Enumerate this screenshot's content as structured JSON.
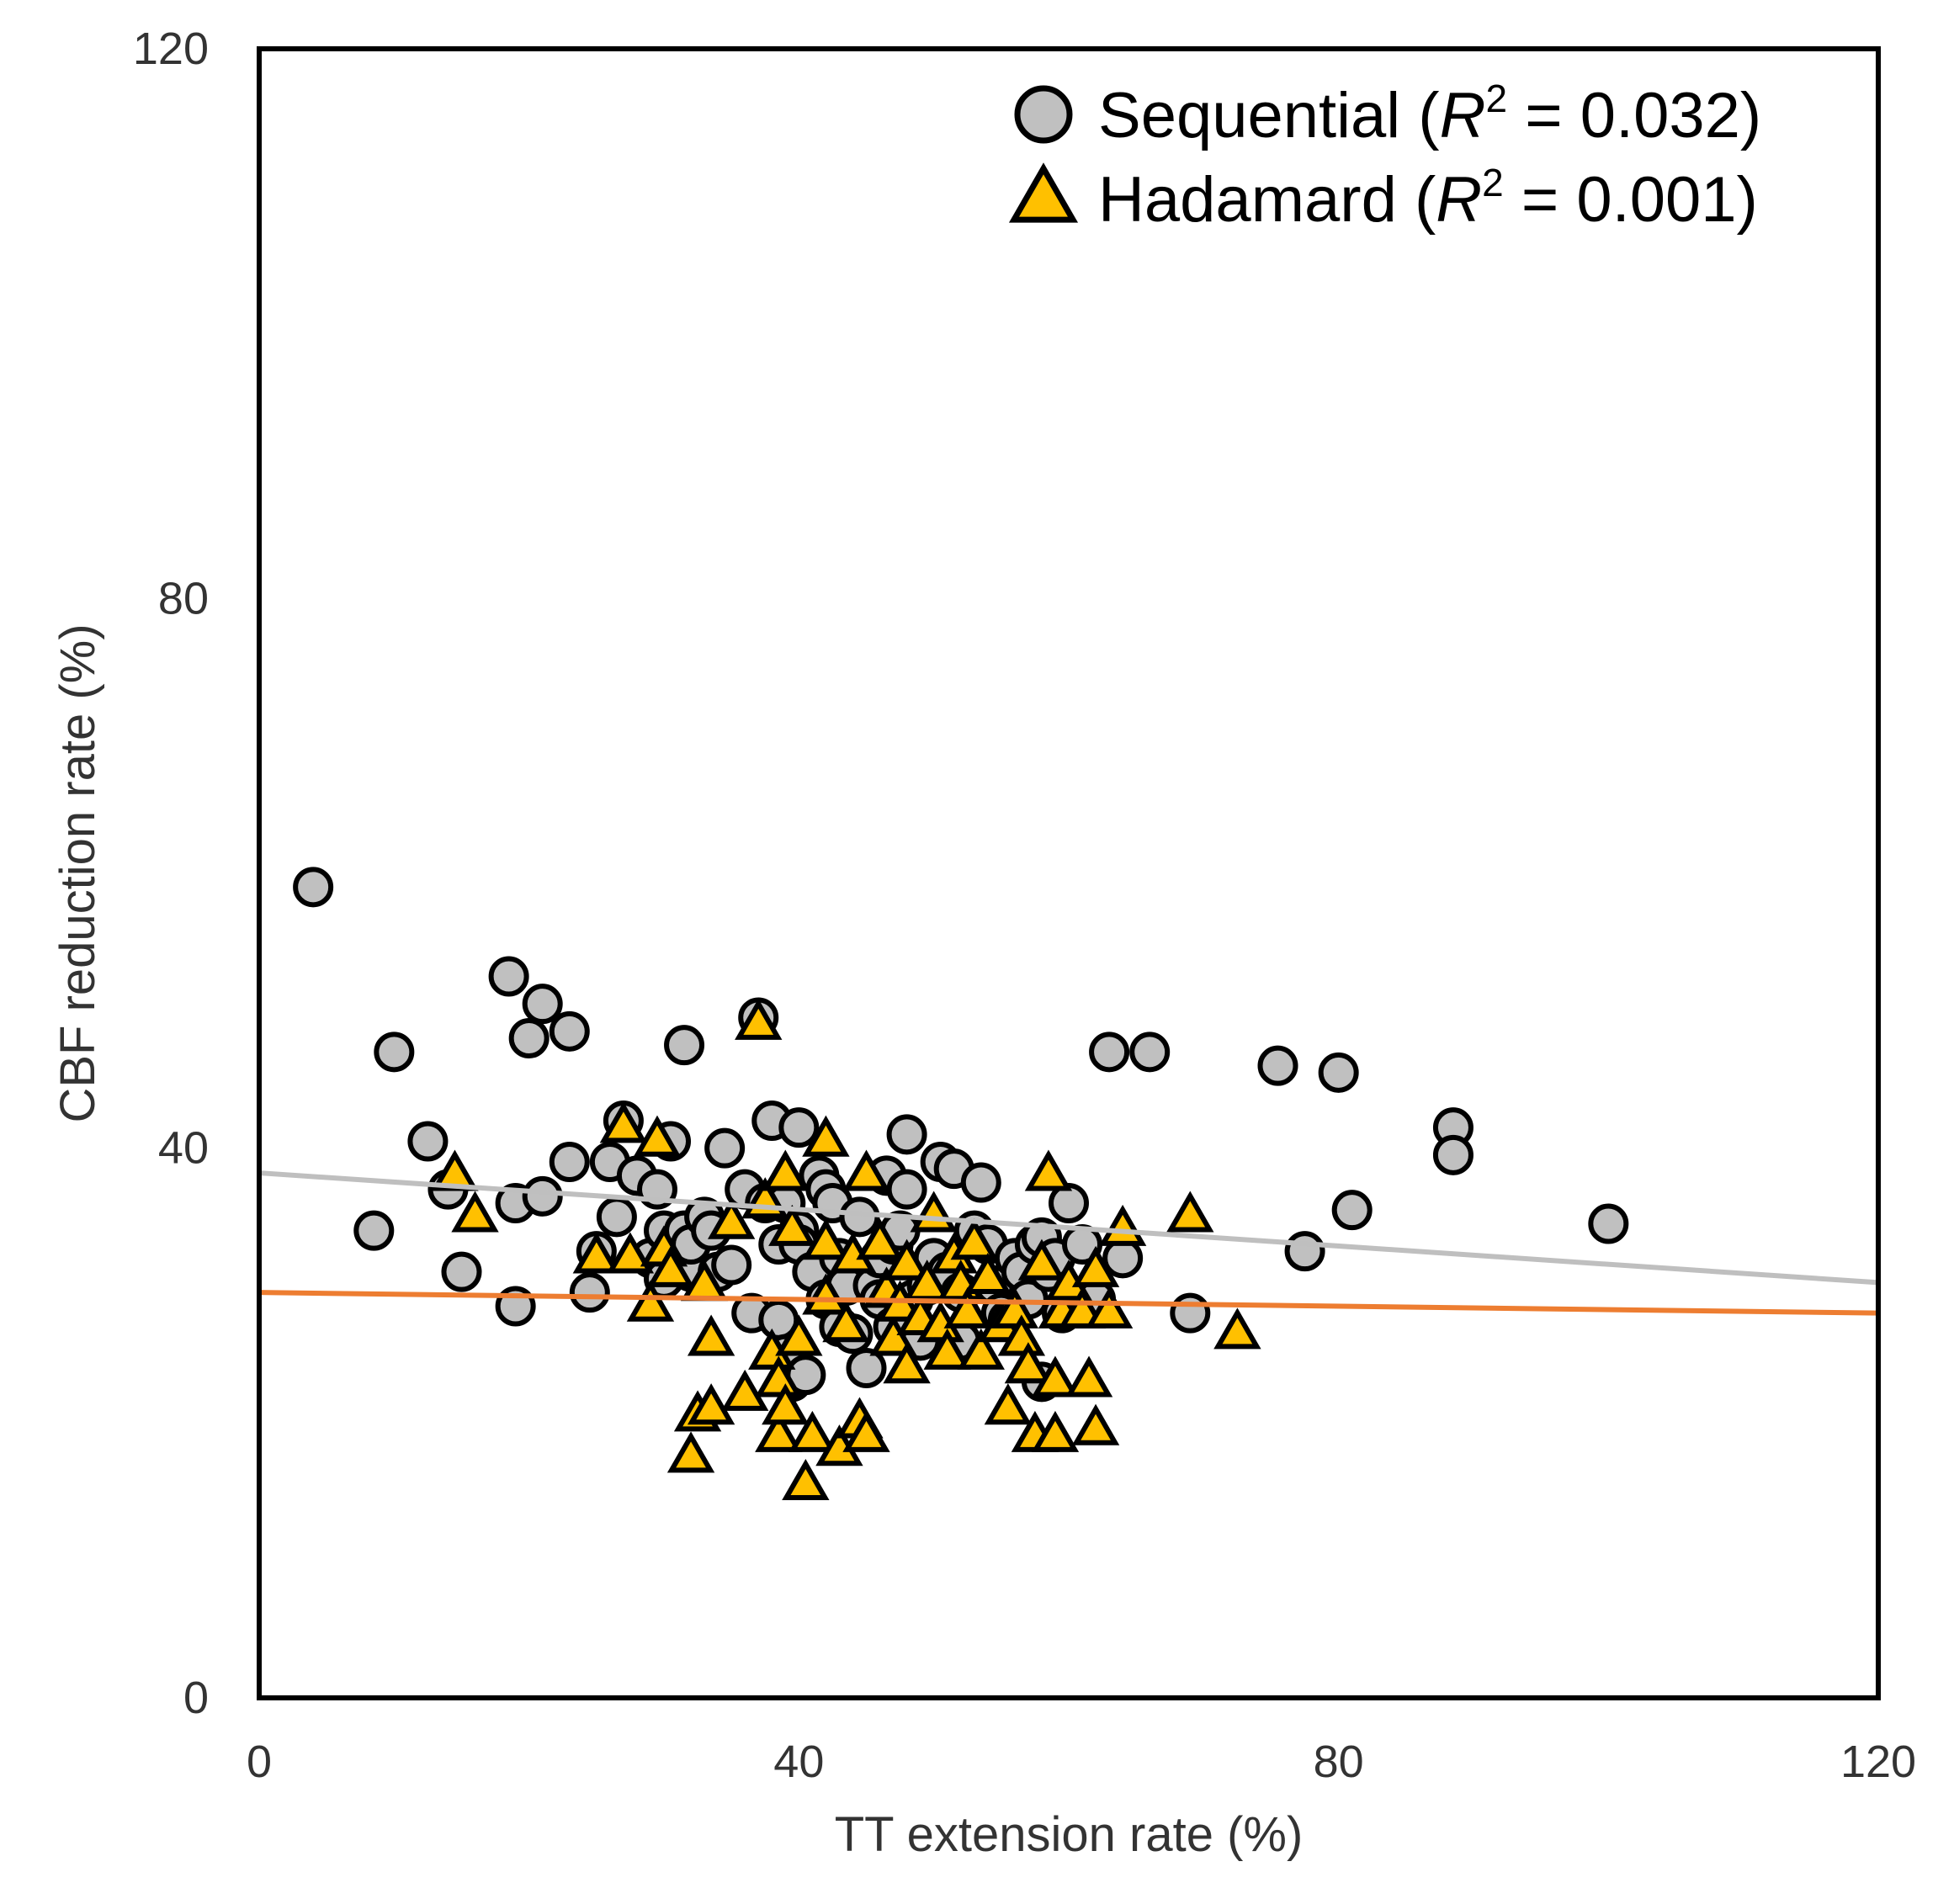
{
  "chart_data": {
    "type": "scatter",
    "title": "",
    "xlabel": "TT extension rate (%)",
    "ylabel": "CBF reduction rate (%)",
    "xlim": [
      0,
      120
    ],
    "ylim": [
      0,
      120
    ],
    "xticks": [
      0,
      40,
      80,
      120
    ],
    "yticks": [
      0,
      40,
      80,
      120
    ],
    "grid": false,
    "legend_position": "top-right",
    "colors": {
      "sequential_fill": "#c0c0c0",
      "hadamard_fill": "#ffc000",
      "marker_stroke": "#000000",
      "sequential_trend": "#bfbfbf",
      "hadamard_trend": "#ed7d31",
      "frame": "#000000"
    },
    "series": [
      {
        "name": "Sequential",
        "r2_label": "0.032",
        "marker": "circle",
        "trend": {
          "intercept": 38.2,
          "slope": -0.0665
        },
        "points": [
          [
            4,
            59
          ],
          [
            8.5,
            34
          ],
          [
            10,
            47
          ],
          [
            12.5,
            40.5
          ],
          [
            14,
            37
          ],
          [
            15,
            31
          ],
          [
            18.5,
            52.5
          ],
          [
            19,
            36
          ],
          [
            19,
            28.5
          ],
          [
            20,
            48
          ],
          [
            21,
            50.5
          ],
          [
            21,
            36.5
          ],
          [
            23,
            48.5
          ],
          [
            23,
            39
          ],
          [
            24.5,
            29.5
          ],
          [
            25,
            32.5
          ],
          [
            26,
            39
          ],
          [
            26.5,
            35
          ],
          [
            27,
            42
          ],
          [
            28,
            38
          ],
          [
            29,
            32
          ],
          [
            29.5,
            37
          ],
          [
            30,
            34
          ],
          [
            30,
            30.5
          ],
          [
            30.5,
            40.5
          ],
          [
            31,
            32
          ],
          [
            31.5,
            34
          ],
          [
            31.5,
            47.5
          ],
          [
            32,
            31
          ],
          [
            32,
            33
          ],
          [
            33,
            35
          ],
          [
            33.5,
            34
          ],
          [
            34,
            31
          ],
          [
            34.5,
            40
          ],
          [
            35,
            31.5
          ],
          [
            36,
            37
          ],
          [
            36.5,
            28
          ],
          [
            37,
            49.5
          ],
          [
            37.5,
            36
          ],
          [
            38,
            42
          ],
          [
            38.5,
            33
          ],
          [
            38.5,
            27.5
          ],
          [
            39,
            36
          ],
          [
            39,
            25
          ],
          [
            39.5,
            23
          ],
          [
            40,
            41.5
          ],
          [
            40,
            34
          ],
          [
            40,
            33
          ],
          [
            40.5,
            23.5
          ],
          [
            41,
            31
          ],
          [
            41.5,
            38
          ],
          [
            42,
            37
          ],
          [
            42,
            29
          ],
          [
            42.5,
            36
          ],
          [
            43,
            27
          ],
          [
            43,
            32
          ],
          [
            43.5,
            30
          ],
          [
            44,
            26.5
          ],
          [
            44.5,
            35
          ],
          [
            45,
            24
          ],
          [
            45.5,
            30
          ],
          [
            46,
            32
          ],
          [
            46,
            29
          ],
          [
            46.5,
            38
          ],
          [
            47,
            27
          ],
          [
            47,
            33
          ],
          [
            47.5,
            34
          ],
          [
            48,
            41
          ],
          [
            48,
            37
          ],
          [
            48.5,
            29
          ],
          [
            49,
            26
          ],
          [
            49.5,
            30
          ],
          [
            50,
            32
          ],
          [
            50.5,
            39
          ],
          [
            51,
            31
          ],
          [
            51.5,
            38.5
          ],
          [
            52,
            29.5
          ],
          [
            52,
            26
          ],
          [
            53,
            34
          ],
          [
            53.5,
            37.5
          ],
          [
            54,
            33
          ],
          [
            54.5,
            30
          ],
          [
            55,
            28
          ],
          [
            55.5,
            27.5
          ],
          [
            56,
            32
          ],
          [
            56.5,
            31
          ],
          [
            57,
            29
          ],
          [
            57.5,
            33
          ],
          [
            58,
            33.5
          ],
          [
            58,
            23
          ],
          [
            58.5,
            31
          ],
          [
            59,
            32
          ],
          [
            59.5,
            28
          ],
          [
            60,
            36
          ],
          [
            61,
            33
          ],
          [
            62,
            29
          ],
          [
            63,
            47
          ],
          [
            64,
            32
          ],
          [
            66,
            47
          ],
          [
            69,
            28
          ],
          [
            75.5,
            46
          ],
          [
            77.5,
            32.5
          ],
          [
            80,
            45.5
          ],
          [
            81,
            35.5
          ],
          [
            88.5,
            41.5
          ],
          [
            88.5,
            39.5
          ],
          [
            100,
            34.5
          ]
        ]
      },
      {
        "name": "Hadamard",
        "r2_label": "0.001",
        "marker": "triangle",
        "trend": {
          "intercept": 29.5,
          "slope": -0.0125
        },
        "points": [
          [
            14.5,
            38
          ],
          [
            16,
            35
          ],
          [
            25,
            32
          ],
          [
            27,
            41.5
          ],
          [
            27.5,
            32
          ],
          [
            29,
            28.5
          ],
          [
            29.5,
            40.5
          ],
          [
            30,
            32.5
          ],
          [
            30.5,
            31
          ],
          [
            32,
            17.5
          ],
          [
            32.5,
            20.5
          ],
          [
            33,
            30
          ],
          [
            33.5,
            21
          ],
          [
            33.5,
            26
          ],
          [
            35,
            34.5
          ],
          [
            36,
            22
          ],
          [
            37,
            49
          ],
          [
            37.5,
            36
          ],
          [
            38,
            25
          ],
          [
            38.5,
            19
          ],
          [
            38.5,
            23
          ],
          [
            39,
            38
          ],
          [
            39,
            21
          ],
          [
            39.5,
            34
          ],
          [
            40,
            26
          ],
          [
            40.5,
            15.5
          ],
          [
            41,
            19
          ],
          [
            42,
            33
          ],
          [
            42,
            29
          ],
          [
            42,
            40.5
          ],
          [
            43,
            18
          ],
          [
            43.5,
            27
          ],
          [
            44,
            32
          ],
          [
            44.5,
            20
          ],
          [
            45,
            38
          ],
          [
            45,
            19
          ],
          [
            46,
            33
          ],
          [
            46.5,
            29.5
          ],
          [
            47,
            26
          ],
          [
            47.5,
            28.5
          ],
          [
            48,
            31.5
          ],
          [
            48,
            24
          ],
          [
            49,
            27.5
          ],
          [
            49.5,
            30
          ],
          [
            50,
            35
          ],
          [
            50.5,
            27
          ],
          [
            51,
            25
          ],
          [
            51.5,
            32
          ],
          [
            52,
            30
          ],
          [
            52.5,
            28
          ],
          [
            53,
            33
          ],
          [
            53.5,
            25
          ],
          [
            54,
            30.5
          ],
          [
            55,
            27
          ],
          [
            55.5,
            21
          ],
          [
            56,
            28
          ],
          [
            56.5,
            26
          ],
          [
            57,
            24
          ],
          [
            57.5,
            19
          ],
          [
            58,
            31.5
          ],
          [
            58.5,
            38
          ],
          [
            59,
            19
          ],
          [
            59,
            23
          ],
          [
            59.5,
            28
          ],
          [
            60,
            30
          ],
          [
            61,
            28
          ],
          [
            61.5,
            23
          ],
          [
            62,
            19.5
          ],
          [
            62,
            31
          ],
          [
            63,
            28
          ],
          [
            64,
            34
          ],
          [
            69,
            35
          ],
          [
            72.5,
            26.5
          ]
        ]
      }
    ]
  },
  "legend": {
    "r_symbol": "R",
    "r_sup": "2",
    "eq": " = ",
    "open": "(",
    "close": ")"
  }
}
